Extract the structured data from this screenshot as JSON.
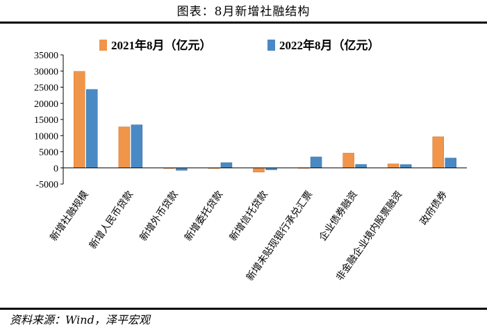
{
  "title": "图表：8月新增社融结构",
  "source": "资料来源：Wind，泽平宏观",
  "chart_data": {
    "type": "bar",
    "categories": [
      "新增社融规模",
      "新增人民币贷款",
      "新增外币贷款",
      "新增委托贷款",
      "新增信托贷款",
      "新增未贴现银行承兑汇票",
      "企业债券融资",
      "非金融企业境内股票融资",
      "政府债券"
    ],
    "series": [
      {
        "name": "2021年8月（亿元）",
        "color": "#F0954A",
        "values": [
          29893,
          12713,
          -14,
          6,
          -1305,
          47,
          4586,
          1258,
          9648
        ]
      },
      {
        "name": "2022年8月（亿元）",
        "color": "#4A8AC4",
        "values": [
          24300,
          13345,
          -742,
          1635,
          -583,
          3405,
          1084,
          1045,
          3060
        ]
      }
    ],
    "ylim": [
      -5000,
      35000
    ],
    "yticks": [
      -5000,
      0,
      5000,
      10000,
      15000,
      20000,
      25000,
      30000,
      35000
    ],
    "legend_position": "top"
  }
}
